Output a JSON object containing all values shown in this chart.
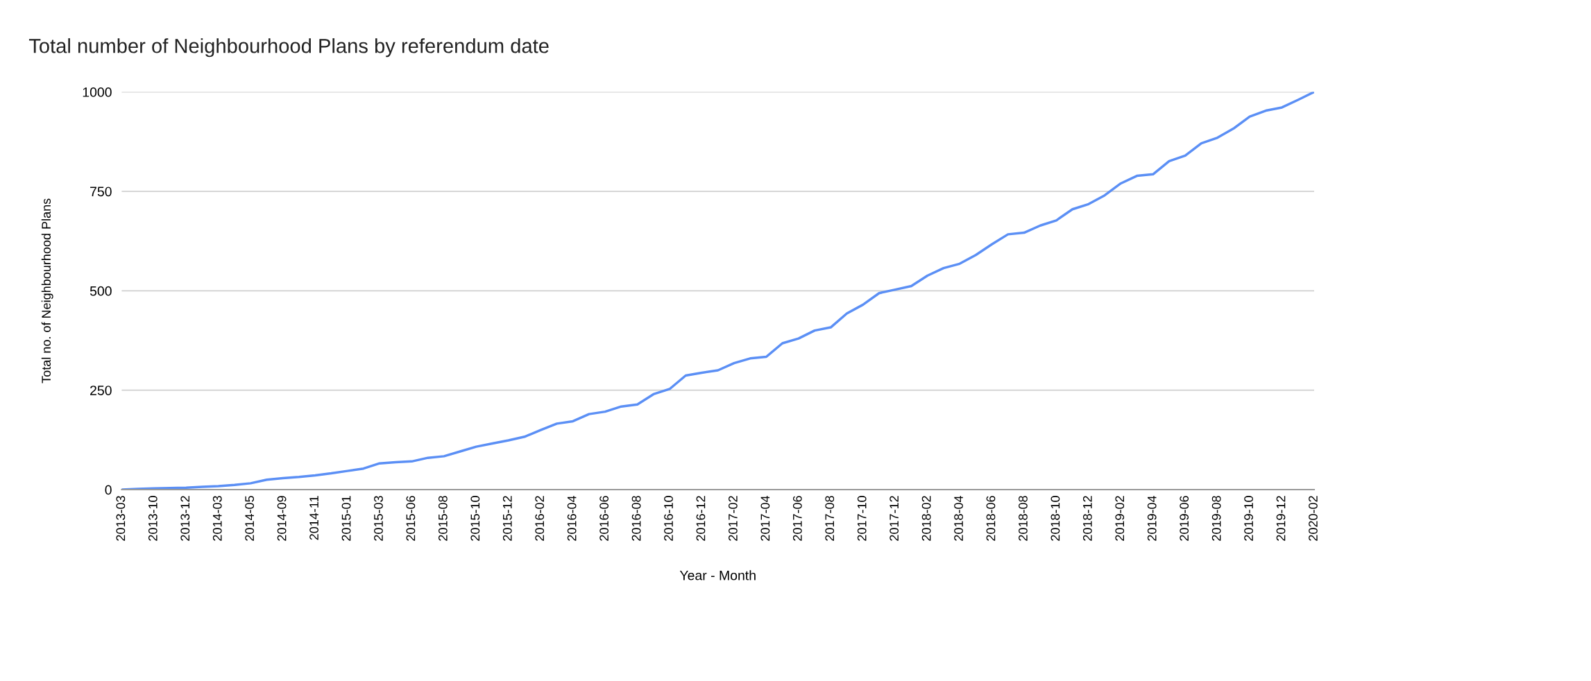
{
  "chart_data": {
    "type": "line",
    "title": "Total number of Neighbourhood Plans by referendum date",
    "xlabel": "Year - Month",
    "ylabel": "Total no. of Neighbourhood Plans",
    "categories": [
      "2013-03",
      null,
      "2013-10",
      null,
      "2013-12",
      null,
      "2014-03",
      null,
      "2014-05",
      null,
      "2014-09",
      null,
      "2014-11",
      null,
      "2015-01",
      null,
      "2015-03",
      null,
      "2015-06",
      null,
      "2015-08",
      null,
      "2015-10",
      null,
      "2015-12",
      null,
      "2016-02",
      null,
      "2016-04",
      null,
      "2016-06",
      null,
      "2016-08",
      null,
      "2016-10",
      null,
      "2016-12",
      null,
      "2017-02",
      null,
      "2017-04",
      null,
      "2017-06",
      null,
      "2017-08",
      null,
      "2017-10",
      null,
      "2017-12",
      null,
      "2018-02",
      null,
      "2018-04",
      null,
      "2018-06",
      null,
      "2018-08",
      null,
      "2018-10",
      null,
      "2018-12",
      null,
      "2019-02",
      null,
      "2019-04",
      null,
      "2019-06",
      null,
      "2019-08",
      null,
      "2019-10",
      null,
      "2019-12",
      null,
      "2020-02"
    ],
    "series": [
      {
        "color": "#5b8ff5",
        "values": [
          0,
          2,
          3,
          4,
          5,
          7,
          9,
          12,
          16,
          25,
          29,
          32,
          36,
          41,
          47,
          53,
          66,
          69,
          71,
          80,
          84,
          96,
          108,
          116,
          124,
          133,
          150,
          166,
          172,
          190,
          196,
          209,
          214,
          240,
          253,
          287,
          294,
          300,
          318,
          330,
          334,
          368,
          380,
          400,
          408,
          443,
          465,
          494,
          503,
          512,
          538,
          557,
          568,
          590,
          617,
          642,
          646,
          664,
          677,
          705,
          718,
          740,
          770,
          789,
          793,
          826,
          840,
          871,
          885,
          908,
          938,
          953,
          961,
          980,
          1000
        ]
      }
    ],
    "ylim": [
      0,
      1000
    ],
    "yticks": [
      0,
      250,
      500,
      750,
      1000
    ],
    "grid": "y",
    "legend": false,
    "marker": "none",
    "line_style": "solid"
  }
}
